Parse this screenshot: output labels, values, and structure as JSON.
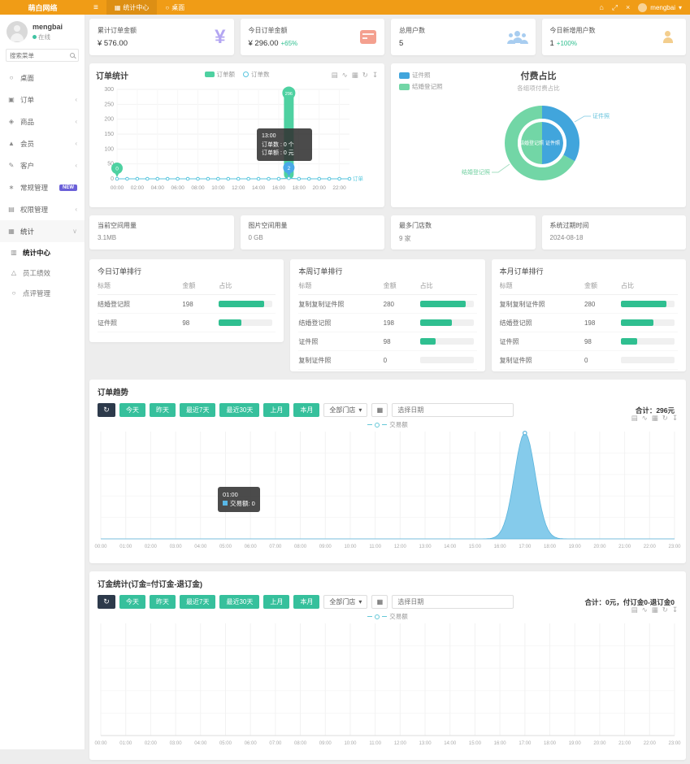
{
  "brand": {
    "logo": "萌白网络"
  },
  "topbar": {
    "tabs": [
      {
        "label": "统计中心"
      },
      {
        "label": "桌面"
      }
    ],
    "user": "mengbai"
  },
  "sidebar": {
    "user": {
      "name": "mengbai",
      "status": "在线"
    },
    "search_placeholder": "搜索菜单",
    "items": [
      {
        "label": "桌面"
      },
      {
        "label": "订单"
      },
      {
        "label": "商品"
      },
      {
        "label": "会员"
      },
      {
        "label": "客户"
      },
      {
        "label": "常规管理",
        "badge": "NEW"
      },
      {
        "label": "权限管理"
      },
      {
        "label": "统计"
      }
    ],
    "sub_items": [
      {
        "label": "统计中心"
      },
      {
        "label": "员工绩效"
      },
      {
        "label": "点评管理"
      }
    ]
  },
  "stat_cards": [
    {
      "title": "累计订单金额",
      "value": "¥ 576.00"
    },
    {
      "title": "今日订单金额",
      "value": "¥ 296.00",
      "delta": "+65%"
    },
    {
      "title": "总用户数",
      "value": "5"
    },
    {
      "title": "今日新增用户数",
      "value": "1",
      "delta": "+100%"
    }
  ],
  "info_cards": [
    {
      "title": "当前空间用量",
      "value": "3.1MB"
    },
    {
      "title": "图片空间用量",
      "value": "0 GB"
    },
    {
      "title": "最多门店数",
      "value": "9 家"
    },
    {
      "title": "系统过期时间",
      "value": "2024-08-18"
    }
  ],
  "rank_tables": [
    {
      "title": "今日订单排行",
      "headers": [
        "标题",
        "金额",
        "占比"
      ],
      "rows": [
        {
          "label": "结婚登记照",
          "value": 198
        },
        {
          "label": "证件照",
          "value": 98
        }
      ]
    },
    {
      "title": "本周订单排行",
      "headers": [
        "标题",
        "金额",
        "占比"
      ],
      "rows": [
        {
          "label": "复制复制证件照",
          "value": 280
        },
        {
          "label": "结婚登记照",
          "value": 198
        },
        {
          "label": "证件照",
          "value": 98
        },
        {
          "label": "复制证件照",
          "value": 0
        }
      ]
    },
    {
      "title": "本月订单排行",
      "headers": [
        "标题",
        "金额",
        "占比"
      ],
      "rows": [
        {
          "label": "复制复制证件照",
          "value": 280
        },
        {
          "label": "结婚登记照",
          "value": 198
        },
        {
          "label": "证件照",
          "value": 98
        },
        {
          "label": "复制证件照",
          "value": 0
        }
      ]
    }
  ],
  "filters": {
    "buttons": [
      {
        "label": "今天"
      },
      {
        "label": "昨天"
      },
      {
        "label": "最近7天"
      },
      {
        "label": "最近30天"
      },
      {
        "label": "上月"
      },
      {
        "label": "本月"
      }
    ],
    "store_select": "全部门店",
    "date_placeholder": "选择日期"
  },
  "trend_panel": {
    "title": "订单趋势",
    "total": "合计：296元",
    "tooltip": {
      "title": "01:00",
      "label": "交易额: 0"
    }
  },
  "deposit_panel": {
    "title": "订金统计(订金=付订金-退订金)",
    "total": "合计：0元，付订金0-退订金0"
  },
  "colors": {
    "accent_green": "#36c09c",
    "bar_green": "#4ed1a1",
    "line_teal": "#58c5de",
    "pie_blue": "#41a5dc",
    "pie_green": "#72d6a6",
    "area_blue": "#7ec8ea",
    "header_orange": "#f09c16",
    "badge_purple": "#6a5fd8",
    "pin_blue": "#4aa9e9"
  },
  "chart_data": [
    {
      "id": "order_stats",
      "type": "bar",
      "title": "订单统计",
      "legend": [
        {
          "label": "订单额"
        },
        {
          "label": "订单数"
        }
      ],
      "categories": [
        "00:00",
        "01:00",
        "02:00",
        "03:00",
        "04:00",
        "05:00",
        "06:00",
        "07:00",
        "08:00",
        "09:00",
        "10:00",
        "11:00",
        "12:00",
        "13:00",
        "14:00",
        "15:00",
        "16:00",
        "17:00",
        "18:00",
        "19:00",
        "20:00",
        "21:00",
        "22:00",
        "23:00"
      ],
      "series": [
        {
          "name": "订单额",
          "type": "bar",
          "values": [
            0,
            0,
            0,
            0,
            0,
            0,
            0,
            0,
            0,
            0,
            0,
            0,
            0,
            0,
            0,
            0,
            0,
            296,
            0,
            0,
            0,
            0,
            0,
            0
          ]
        },
        {
          "name": "订单数",
          "type": "line",
          "values": [
            0,
            0,
            0,
            0,
            0,
            0,
            0,
            0,
            0,
            0,
            0,
            0,
            0,
            0,
            0,
            0,
            0,
            2,
            0,
            0,
            0,
            0,
            0,
            0
          ]
        }
      ],
      "ylim": [
        0,
        300
      ],
      "yticks": [
        0,
        50,
        100,
        150,
        200,
        250,
        300
      ],
      "x_label_every": 2,
      "grid": true,
      "legend_position": "top-center",
      "axis_name": "订单",
      "markers": [
        {
          "label": "0",
          "x": "00:00",
          "color": "green"
        },
        {
          "label": "296",
          "x": "17:00",
          "color": "green"
        },
        {
          "label": "2",
          "x": "17:00",
          "color": "blue"
        }
      ],
      "tooltip": {
        "title": "13:00",
        "lines": [
          "订单数 : 0 个",
          "订单额 : 0 元"
        ]
      }
    },
    {
      "id": "pay_share",
      "type": "pie",
      "title": "付费占比",
      "subtitle": "各组项付费占比",
      "legend": [
        {
          "label": "证件照"
        },
        {
          "label": "结婚登记照"
        }
      ],
      "inner_ring": [
        {
          "name": "证件照",
          "value": 1
        },
        {
          "name": "结婚登记照",
          "value": 1
        }
      ],
      "outer_ring": [
        {
          "name": "证件照",
          "value": 98
        },
        {
          "name": "结婚登记照",
          "value": 198
        }
      ]
    },
    {
      "id": "order_trend",
      "type": "area",
      "legend": "交易额",
      "x": [
        "00:00",
        "01:00",
        "02:00",
        "03:00",
        "04:00",
        "05:00",
        "06:00",
        "07:00",
        "08:00",
        "09:00",
        "10:00",
        "11:00",
        "12:00",
        "13:00",
        "14:00",
        "15:00",
        "16:00",
        "17:00",
        "18:00",
        "19:00",
        "20:00",
        "21:00",
        "22:00",
        "23:00"
      ],
      "values": [
        0,
        0,
        0,
        0,
        0,
        0,
        0,
        0,
        0,
        0,
        0,
        0,
        0,
        0,
        0,
        0,
        0,
        296,
        0,
        0,
        0,
        0,
        0,
        0
      ],
      "ylim": [
        0,
        300
      ],
      "grid": true,
      "legend_position": "top-center"
    },
    {
      "id": "deposit_trend",
      "type": "area",
      "legend": "交易额",
      "x": [
        "00:00",
        "01:00",
        "02:00",
        "03:00",
        "04:00",
        "05:00",
        "06:00",
        "07:00",
        "08:00",
        "09:00",
        "10:00",
        "11:00",
        "12:00",
        "13:00",
        "14:00",
        "15:00",
        "16:00",
        "17:00",
        "18:00",
        "19:00",
        "20:00",
        "21:00",
        "22:00",
        "23:00"
      ],
      "values": [
        0,
        0,
        0,
        0,
        0,
        0,
        0,
        0,
        0,
        0,
        0,
        0,
        0,
        0,
        0,
        0,
        0,
        0,
        0,
        0,
        0,
        0,
        0,
        0
      ],
      "ylim": [
        0,
        1
      ],
      "grid": true,
      "legend_position": "top-center"
    }
  ],
  "toolbox_icons": [
    "data-view",
    "line-type",
    "bar-type",
    "restore",
    "download"
  ]
}
